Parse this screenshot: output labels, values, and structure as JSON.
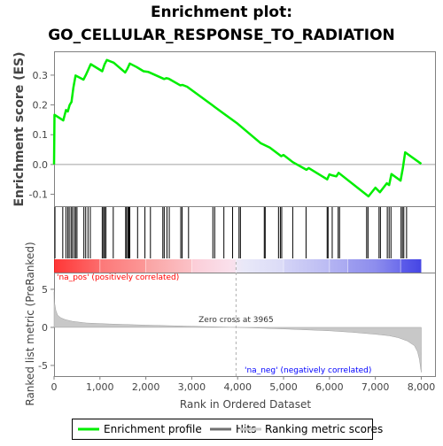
{
  "chart_data": {
    "type": "line",
    "title_line1": "Enrichment plot:",
    "title_line2": "GO_CELLULAR_RESPONSE_TO_RADIATION",
    "es_ylabel": "Enrichment score (ES)",
    "metric_ylabel": "Ranked list metric (PreRanked)",
    "xlabel": "Rank in Ordered Dataset",
    "xlim": [
      0,
      8300
    ],
    "es_ylim": [
      -0.14,
      0.38
    ],
    "metric_ylim": [
      -6.4,
      7.2
    ],
    "x_ticks": [
      0,
      1000,
      2000,
      3000,
      4000,
      5000,
      6000,
      7000,
      8000
    ],
    "x_tick_labels": [
      "0",
      "1,000",
      "2,000",
      "3,000",
      "4,000",
      "5,000",
      "6,000",
      "7,000",
      "8,000"
    ],
    "es_ticks": [
      -0.1,
      0.0,
      0.1,
      0.2,
      0.3
    ],
    "es_tick_labels": [
      "-0.1",
      "0.0",
      "0.1",
      "0.2",
      "0.3"
    ],
    "metric_ticks": [
      -5,
      0,
      5
    ],
    "metric_tick_labels": [
      "-5",
      "0",
      "5"
    ],
    "zero_cross_rank": 3965,
    "zero_cross_label": "Zero cross at 3965",
    "pos_label": "'na_pos' (positively correlated)",
    "neg_label": "'na_neg' (negatively correlated)",
    "legend": [
      "Enrichment profile",
      "Hits",
      "Ranking metric scores"
    ],
    "colors": {
      "enrichment": "#00ee00",
      "hits": "#000000",
      "metric": "#c8c8c8",
      "pos_text": "#ff0000",
      "neg_text": "#0000ff"
    },
    "enrichment_profile": {
      "x": [
        0,
        10,
        200,
        260,
        300,
        340,
        380,
        420,
        470,
        640,
        700,
        740,
        800,
        1050,
        1100,
        1150,
        1300,
        1550,
        1600,
        1650,
        1800,
        1950,
        2050,
        2400,
        2450,
        2500,
        2750,
        2800,
        2900,
        3450,
        3500,
        4000,
        4500,
        4700,
        4950,
        5000,
        5200,
        5500,
        5550,
        5950,
        6000,
        6050,
        6150,
        6200,
        6850,
        7000,
        7100,
        7250,
        7300,
        7350,
        7550,
        7600,
        7650,
        8000
      ],
      "y": [
        0.0,
        0.167,
        0.148,
        0.183,
        0.178,
        0.2,
        0.21,
        0.258,
        0.299,
        0.285,
        0.303,
        0.316,
        0.337,
        0.313,
        0.336,
        0.351,
        0.342,
        0.309,
        0.322,
        0.339,
        0.327,
        0.313,
        0.311,
        0.287,
        0.29,
        0.288,
        0.266,
        0.267,
        0.261,
        0.199,
        0.193,
        0.137,
        0.072,
        0.057,
        0.028,
        0.032,
        0.008,
        -0.018,
        -0.012,
        -0.05,
        -0.033,
        -0.036,
        -0.04,
        -0.028,
        -0.107,
        -0.078,
        -0.093,
        -0.063,
        -0.069,
        -0.032,
        -0.054,
        -0.012,
        0.041,
        0.002
      ]
    },
    "hits": [
      20,
      190,
      260,
      300,
      330,
      370,
      400,
      440,
      470,
      500,
      650,
      690,
      740,
      790,
      1050,
      1080,
      1100,
      1130,
      1290,
      1560,
      1580,
      1610,
      1630,
      1650,
      1820,
      1980,
      2100,
      2370,
      2400,
      2460,
      2510,
      2760,
      2790,
      2930,
      3460,
      3500,
      3700,
      3890,
      4030,
      4060,
      4580,
      4600,
      4890,
      4930,
      4960,
      5200,
      5490,
      5950,
      5970,
      6060,
      6190,
      6220,
      6810,
      6840,
      7080,
      7110,
      7260,
      7300,
      7340,
      7560,
      7590,
      7620,
      7680
    ],
    "metric_profile": {
      "rank": [
        0,
        10,
        40,
        80,
        150,
        250,
        400,
        700,
        1200,
        2000,
        3000,
        3965,
        5000,
        6000,
        6500,
        7000,
        7300,
        7500,
        7700,
        7850,
        7920,
        7960,
        7990,
        8000
      ],
      "value": [
        4.7,
        3.3,
        2.2,
        1.6,
        1.25,
        1.0,
        0.8,
        0.58,
        0.45,
        0.3,
        0.15,
        0.0,
        -0.2,
        -0.45,
        -0.65,
        -0.9,
        -1.1,
        -1.35,
        -1.8,
        -2.4,
        -3.2,
        -4.2,
        -5.5,
        -5.9
      ]
    },
    "color_bar": {
      "stops": [
        {
          "rank": 0,
          "color": "#ff0000"
        },
        {
          "rank": 1000,
          "color": "#fb5a5a"
        },
        {
          "rank": 2000,
          "color": "#f9908f"
        },
        {
          "rank": 3000,
          "color": "#fbc3cc"
        },
        {
          "rank": 3850,
          "color": "#f7e3ef"
        },
        {
          "rank": 4150,
          "color": "#e6e6f6"
        },
        {
          "rank": 5000,
          "color": "#cfcff4"
        },
        {
          "rank": 6000,
          "color": "#a6a6f0"
        },
        {
          "rank": 7000,
          "color": "#7878ea"
        },
        {
          "rank": 7600,
          "color": "#3c3ce6"
        },
        {
          "rank": 8000,
          "color": "#1818dd"
        }
      ],
      "segment_ranks": [
        0,
        1000,
        2000,
        3000,
        3965,
        5000,
        6000,
        6400,
        7550,
        8000
      ],
      "segment_colors": [
        "#ff2525",
        "#ff5a5a",
        "#fa8c8c",
        "#fbc0d4",
        "#dcdcf8",
        "#bcbcf4",
        "#9a9aee",
        "#6a6ae8",
        "#2a2ae0"
      ]
    }
  }
}
